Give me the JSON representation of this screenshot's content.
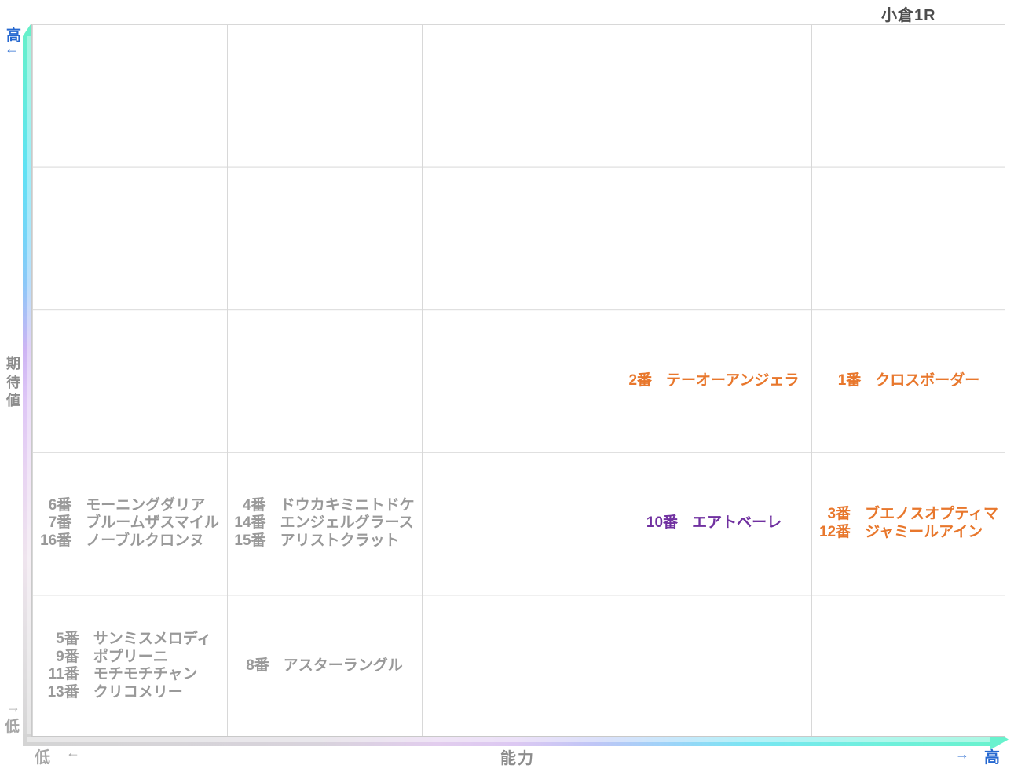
{
  "title": "小倉1R",
  "colors": {
    "orange": "#E8772C",
    "purple": "#7030A0",
    "gray": "#999999",
    "blue": "#2668D0",
    "axis_gray": "#8C8C8C",
    "title_gray": "#4D4D4D"
  },
  "axes": {
    "y": {
      "title": "期待値",
      "high_label": "高",
      "high_arrow": "←",
      "low_arrow": "→",
      "low_label": "低"
    },
    "x": {
      "title": "能力",
      "low_label": "低",
      "low_arrow": "←",
      "high_arrow": "→",
      "high_label": "高"
    }
  },
  "chart_data": {
    "type": "scatter",
    "title": "小倉1R",
    "xlabel": "能力",
    "ylabel": "期待値",
    "x_range_labels": [
      "低",
      "高"
    ],
    "y_range_labels": [
      "低",
      "高"
    ],
    "grid": {
      "columns": 5,
      "rows": 5,
      "grid_on": true
    },
    "points": [
      {
        "label": "1番",
        "number": 1,
        "name": "クロスボーダー",
        "col": 5,
        "row": 3,
        "color": "orange"
      },
      {
        "label": "2番",
        "number": 2,
        "name": "テーオーアンジェラ",
        "col": 4,
        "row": 3,
        "color": "orange"
      },
      {
        "label": "3番",
        "number": 3,
        "name": "ブエノスオプティマ",
        "col": 5,
        "row": 4,
        "color": "orange"
      },
      {
        "label": "4番",
        "number": 4,
        "name": "ドウカキミニトドケ",
        "col": 2,
        "row": 4,
        "color": "gray"
      },
      {
        "label": "5番",
        "number": 5,
        "name": "サンミスメロディ",
        "col": 1,
        "row": 5,
        "color": "gray"
      },
      {
        "label": "6番",
        "number": 6,
        "name": "モーニングダリア",
        "col": 1,
        "row": 4,
        "color": "gray"
      },
      {
        "label": "7番",
        "number": 7,
        "name": "ブルームザスマイル",
        "col": 1,
        "row": 4,
        "color": "gray"
      },
      {
        "label": "8番",
        "number": 8,
        "name": "アスターラングル",
        "col": 2,
        "row": 5,
        "color": "gray"
      },
      {
        "label": "9番",
        "number": 9,
        "name": "ポプリーニ",
        "col": 1,
        "row": 5,
        "color": "gray"
      },
      {
        "label": "10番",
        "number": 10,
        "name": "エアトベーレ",
        "col": 4,
        "row": 4,
        "color": "purple"
      },
      {
        "label": "11番",
        "number": 11,
        "name": "モチモチチャン",
        "col": 1,
        "row": 5,
        "color": "gray"
      },
      {
        "label": "12番",
        "number": 12,
        "name": "ジャミールアイン",
        "col": 5,
        "row": 4,
        "color": "orange"
      },
      {
        "label": "13番",
        "number": 13,
        "name": "クリコメリー",
        "col": 1,
        "row": 5,
        "color": "gray"
      },
      {
        "label": "14番",
        "number": 14,
        "name": "エンジェルグラース",
        "col": 2,
        "row": 4,
        "color": "gray"
      },
      {
        "label": "15番",
        "number": 15,
        "name": "アリストクラット",
        "col": 2,
        "row": 4,
        "color": "gray"
      },
      {
        "label": "16番",
        "number": 16,
        "name": "ノーブルクロンヌ",
        "col": 1,
        "row": 4,
        "color": "gray"
      }
    ]
  }
}
